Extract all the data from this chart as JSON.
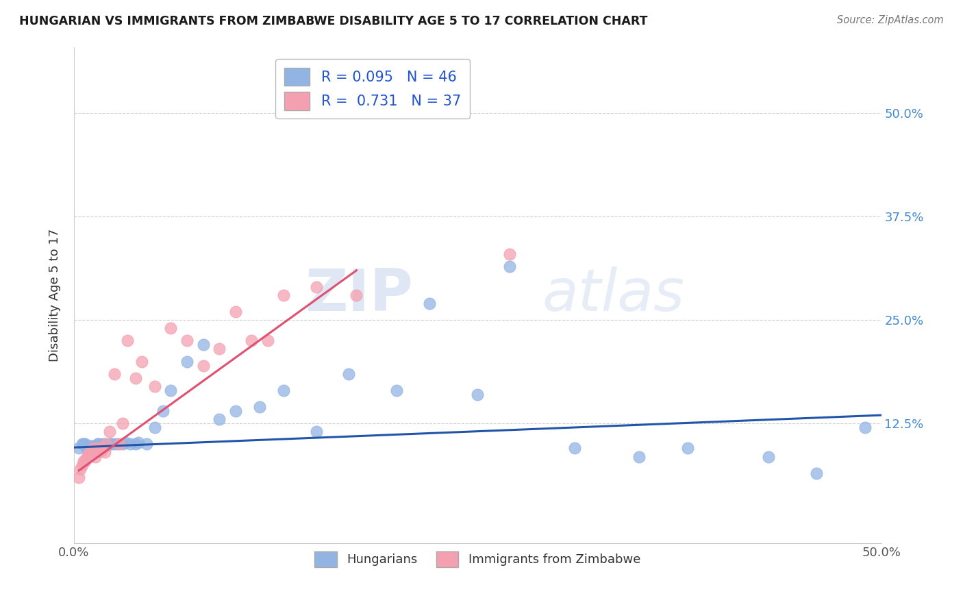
{
  "title": "HUNGARIAN VS IMMIGRANTS FROM ZIMBABWE DISABILITY AGE 5 TO 17 CORRELATION CHART",
  "source": "Source: ZipAtlas.com",
  "ylabel": "Disability Age 5 to 17",
  "xlabel": "",
  "xlim": [
    0.0,
    0.5
  ],
  "ylim": [
    -0.02,
    0.58
  ],
  "xticks": [
    0.0,
    0.5
  ],
  "xticklabels": [
    "0.0%",
    "50.0%"
  ],
  "yticks": [
    0.0,
    0.125,
    0.25,
    0.375,
    0.5
  ],
  "right_yticklabels": [
    "",
    "12.5%",
    "25.0%",
    "37.5%",
    "50.0%"
  ],
  "blue_R": 0.095,
  "blue_N": 46,
  "pink_R": 0.731,
  "pink_N": 37,
  "blue_color": "#92b4e3",
  "pink_color": "#f4a0b0",
  "blue_line_color": "#2255aa",
  "pink_line_color": "#e05070",
  "watermark_zip": "ZIP",
  "watermark_atlas": "atlas",
  "blue_scatter_x": [
    0.003,
    0.005,
    0.006,
    0.007,
    0.008,
    0.009,
    0.01,
    0.012,
    0.013,
    0.015,
    0.015,
    0.017,
    0.018,
    0.019,
    0.02,
    0.022,
    0.023,
    0.025,
    0.027,
    0.03,
    0.032,
    0.035,
    0.038,
    0.04,
    0.045,
    0.05,
    0.055,
    0.06,
    0.07,
    0.08,
    0.09,
    0.1,
    0.115,
    0.13,
    0.15,
    0.17,
    0.2,
    0.22,
    0.25,
    0.27,
    0.31,
    0.35,
    0.38,
    0.43,
    0.46,
    0.49
  ],
  "blue_scatter_y": [
    0.095,
    0.1,
    0.1,
    0.1,
    0.095,
    0.098,
    0.098,
    0.098,
    0.095,
    0.1,
    0.1,
    0.098,
    0.1,
    0.1,
    0.098,
    0.1,
    0.1,
    0.1,
    0.1,
    0.1,
    0.102,
    0.1,
    0.1,
    0.102,
    0.1,
    0.12,
    0.14,
    0.165,
    0.2,
    0.22,
    0.13,
    0.14,
    0.145,
    0.165,
    0.115,
    0.185,
    0.165,
    0.27,
    0.16,
    0.315,
    0.095,
    0.085,
    0.095,
    0.085,
    0.065,
    0.12
  ],
  "pink_scatter_x": [
    0.003,
    0.004,
    0.005,
    0.006,
    0.007,
    0.008,
    0.009,
    0.01,
    0.011,
    0.012,
    0.013,
    0.014,
    0.015,
    0.016,
    0.017,
    0.018,
    0.019,
    0.02,
    0.022,
    0.025,
    0.028,
    0.03,
    0.033,
    0.038,
    0.042,
    0.05,
    0.06,
    0.07,
    0.08,
    0.09,
    0.1,
    0.11,
    0.12,
    0.13,
    0.15,
    0.175,
    0.27
  ],
  "pink_scatter_y": [
    0.06,
    0.07,
    0.075,
    0.08,
    0.08,
    0.085,
    0.088,
    0.09,
    0.09,
    0.095,
    0.085,
    0.09,
    0.095,
    0.095,
    0.092,
    0.095,
    0.09,
    0.1,
    0.115,
    0.185,
    0.1,
    0.125,
    0.225,
    0.18,
    0.2,
    0.17,
    0.24,
    0.225,
    0.195,
    0.215,
    0.26,
    0.225,
    0.225,
    0.28,
    0.29,
    0.28,
    0.33
  ],
  "blue_line_x": [
    0.0,
    0.5
  ],
  "blue_line_y": [
    0.096,
    0.135
  ],
  "pink_line_x": [
    0.003,
    0.175
  ],
  "pink_line_y": [
    0.068,
    0.31
  ],
  "grid_color": "#d0d0d0",
  "grid_yticks": [
    0.125,
    0.25,
    0.375,
    0.5
  ]
}
